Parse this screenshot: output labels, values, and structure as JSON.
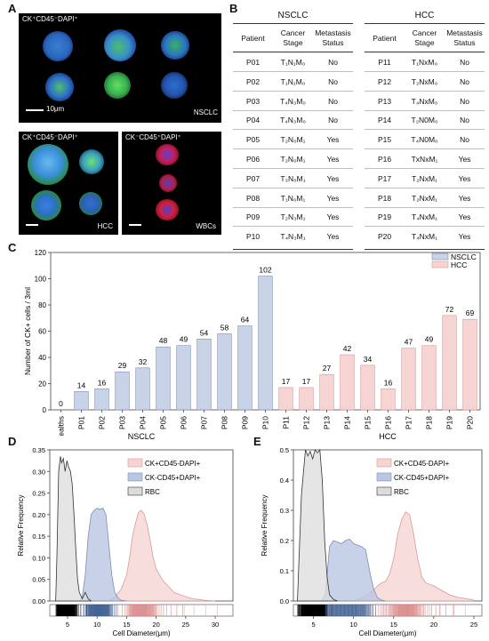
{
  "figure": {
    "panel_labels": {
      "A": "A",
      "B": "B",
      "C": "C",
      "D": "D",
      "E": "E"
    },
    "panel_a": {
      "top_label": "CK⁺CD45⁻DAPI⁺",
      "top_sublabel": "NSCLC",
      "top_scalebar": "10μm",
      "bottom_left_label": "CK⁺CD45⁻DAPI⁺",
      "bottom_left_sublabel": "HCC",
      "bottom_right_label": "CK⁻CD45⁺DAPI⁺",
      "bottom_right_sublabel": "WBCs"
    },
    "panel_b": {
      "nsclc": {
        "title": "NSCLC",
        "headers": [
          "Patient",
          "Cancer\nStage",
          "Metastasis\nStatus"
        ],
        "rows": [
          [
            "P01",
            "T₁N₁M₀",
            "No"
          ],
          [
            "P02",
            "T₁N₁M₀",
            "No"
          ],
          [
            "P03",
            "T₄N₃M₀",
            "No"
          ],
          [
            "P04",
            "T₄N₃M₀",
            "No"
          ],
          [
            "P05",
            "T₂N₀M₁",
            "Yes"
          ],
          [
            "P06",
            "T₂N₀M₁",
            "Yes"
          ],
          [
            "P07",
            "T₃N₀M₁",
            "Yes"
          ],
          [
            "P08",
            "T₁N₀M₁",
            "Yes"
          ],
          [
            "P09",
            "T₂N₃M₁",
            "Yes"
          ],
          [
            "P10",
            "T₄N₃M₁",
            "Yes"
          ]
        ]
      },
      "hcc": {
        "title": "HCC",
        "headers": [
          "Patient",
          "Cancer\nStage",
          "Metastasis\nStatus"
        ],
        "rows": [
          [
            "P11",
            "T₁NxM₀",
            "No"
          ],
          [
            "P12",
            "T₂NxM₀",
            "No"
          ],
          [
            "P13",
            "T₄NxM₀",
            "No"
          ],
          [
            "P14",
            "T₂N0M₀",
            "No"
          ],
          [
            "P15",
            "T₄N0M₀",
            "No"
          ],
          [
            "P16",
            "TxNxM₁",
            "Yes"
          ],
          [
            "P17",
            "T₂NxM₁",
            "Yes"
          ],
          [
            "P18",
            "T₂NxM₁",
            "Yes"
          ],
          [
            "P19",
            "T₄NxM₁",
            "Yes"
          ],
          [
            "P20",
            "T₄NxM₁",
            "Yes"
          ]
        ]
      }
    }
  },
  "colors": {
    "nsclc": "#c9d3e8",
    "nsclc_edge": "#7f8fb0",
    "hcc": "#f6d4d4",
    "hcc_edge": "#d89a9a",
    "ck_cd45_pos": "#b9c6e1",
    "rbc": "#dcdcdc"
  },
  "chart_data": [
    {
      "type": "bar",
      "panel": "C",
      "categories": [
        "Healths",
        "P01",
        "P02",
        "P03",
        "P04",
        "P05",
        "P06",
        "P07",
        "P08",
        "P09",
        "P10",
        "P11",
        "P12",
        "P13",
        "P14",
        "P15",
        "P16",
        "P17",
        "P18",
        "P19",
        "P20"
      ],
      "values": [
        0,
        14,
        16,
        29,
        32,
        48,
        49,
        54,
        58,
        64,
        102,
        17,
        17,
        27,
        42,
        34,
        16,
        47,
        49,
        72,
        69
      ],
      "value_labels": [
        "0",
        "14",
        "16",
        "29",
        "32",
        "48",
        "49",
        "54",
        "58",
        "64",
        "102",
        "17",
        "17",
        "27",
        "42",
        "34",
        "16",
        "47",
        "49",
        "72",
        "69"
      ],
      "groups": [
        "none",
        "NSCLC",
        "NSCLC",
        "NSCLC",
        "NSCLC",
        "NSCLC",
        "NSCLC",
        "NSCLC",
        "NSCLC",
        "NSCLC",
        "NSCLC",
        "HCC",
        "HCC",
        "HCC",
        "HCC",
        "HCC",
        "HCC",
        "HCC",
        "HCC",
        "HCC",
        "HCC"
      ],
      "legend": [
        "NSCLC",
        "HCC"
      ],
      "legend_position": "top-right",
      "ylabel": "Number of CK+ cells / 3ml",
      "xlabel": "",
      "ylim": [
        0,
        120
      ],
      "yticks": [
        0,
        20,
        40,
        60,
        80,
        100,
        120
      ],
      "ytick_labels": [
        "0",
        "20",
        "40",
        "60",
        "80",
        "100",
        "120"
      ]
    },
    {
      "type": "area",
      "panel": "D",
      "title": "NSCLC",
      "xlabel": "Cell Diameter(μm)",
      "ylabel": "Relative Frequency",
      "xlim": [
        2,
        33
      ],
      "ylim": [
        0,
        0.35
      ],
      "xticks": [
        5,
        10,
        15,
        20,
        25,
        30
      ],
      "xtick_labels": [
        "5",
        "10",
        "15",
        "20",
        "25",
        "30"
      ],
      "yticks": [
        0,
        0.05,
        0.1,
        0.15,
        0.2,
        0.25,
        0.3,
        0.35
      ],
      "ytick_labels": [
        "0.00",
        "0.05",
        "0.10",
        "0.15",
        "0.20",
        "0.25",
        "0.30",
        "0.35"
      ],
      "legend_position": "top-right",
      "series": [
        {
          "name": "CK+CD45-DAPI+",
          "x": [
            12,
            13,
            14,
            15,
            15.5,
            16,
            16.5,
            17,
            17.5,
            18,
            18.5,
            19,
            19.5,
            20,
            21,
            22,
            23,
            24,
            25,
            26,
            28,
            30
          ],
          "values": [
            0,
            0.01,
            0.025,
            0.06,
            0.1,
            0.15,
            0.18,
            0.205,
            0.21,
            0.2,
            0.175,
            0.14,
            0.1,
            0.075,
            0.05,
            0.035,
            0.02,
            0.015,
            0.01,
            0.006,
            0.002,
            0
          ]
        },
        {
          "name": "CK-CD45+DAPI+",
          "x": [
            7,
            7.5,
            8,
            8.5,
            9,
            9.5,
            10,
            10.5,
            11,
            11.5,
            12,
            12.5,
            13,
            13.5,
            14,
            15
          ],
          "values": [
            0,
            0.01,
            0.06,
            0.15,
            0.2,
            0.21,
            0.215,
            0.212,
            0.215,
            0.2,
            0.13,
            0.06,
            0.02,
            0.008,
            0.002,
            0
          ]
        },
        {
          "name": "RBC",
          "x": [
            3,
            3.2,
            3.5,
            3.8,
            4,
            4.3,
            4.6,
            4.9,
            5.2,
            5.5,
            5.8,
            6.1,
            6.4,
            6.7,
            7,
            7.5,
            8,
            8.5,
            9
          ],
          "values": [
            0,
            0.1,
            0.3,
            0.335,
            0.32,
            0.33,
            0.3,
            0.325,
            0.31,
            0.3,
            0.27,
            0.2,
            0.12,
            0.05,
            0.02,
            0.005,
            0.02,
            0.005,
            0
          ]
        }
      ]
    },
    {
      "type": "area",
      "panel": "E",
      "title": "HCC",
      "xlabel": "Cell Diameter(μm)",
      "ylabel": "Relative Frequency",
      "xlim": [
        2.5,
        26
      ],
      "ylim": [
        0,
        0.5
      ],
      "xticks": [
        5,
        10,
        15,
        20,
        25
      ],
      "xtick_labels": [
        "5",
        "10",
        "15",
        "20",
        "25"
      ],
      "yticks": [
        0,
        0.1,
        0.2,
        0.3,
        0.4,
        0.5
      ],
      "ytick_labels": [
        "0.0",
        "0.1",
        "0.2",
        "0.3",
        "0.4",
        "0.5"
      ],
      "legend_position": "top-right",
      "series": [
        {
          "name": "CK+CD45-DAPI+",
          "x": [
            10,
            11,
            12,
            13,
            13.5,
            14,
            14.5,
            15,
            15.5,
            16,
            16.5,
            17,
            17.5,
            18,
            18.5,
            19,
            20,
            21,
            22,
            23,
            24,
            25
          ],
          "values": [
            0,
            0.01,
            0.025,
            0.05,
            0.06,
            0.065,
            0.09,
            0.14,
            0.22,
            0.27,
            0.295,
            0.285,
            0.22,
            0.14,
            0.08,
            0.06,
            0.05,
            0.035,
            0.02,
            0.012,
            0.008,
            0.003
          ]
        },
        {
          "name": "CK-CD45+DAPI+",
          "x": [
            6,
            6.5,
            7,
            7.5,
            8,
            8.5,
            9,
            9.5,
            10,
            10.5,
            11,
            11.5,
            12,
            12.5,
            13,
            13.5,
            14
          ],
          "values": [
            0,
            0.02,
            0.18,
            0.2,
            0.195,
            0.19,
            0.2,
            0.205,
            0.19,
            0.185,
            0.18,
            0.17,
            0.1,
            0.04,
            0.01,
            0.003,
            0
          ]
        },
        {
          "name": "RBC",
          "x": [
            3,
            3.5,
            4,
            4.3,
            4.6,
            4.9,
            5.2,
            5.5,
            5.8,
            6.1,
            6.4,
            6.7,
            7,
            7.5,
            8
          ],
          "values": [
            0,
            0.35,
            0.5,
            0.48,
            0.495,
            0.47,
            0.5,
            0.49,
            0.5,
            0.4,
            0.2,
            0.08,
            0.02,
            0.005,
            0
          ]
        }
      ]
    }
  ]
}
